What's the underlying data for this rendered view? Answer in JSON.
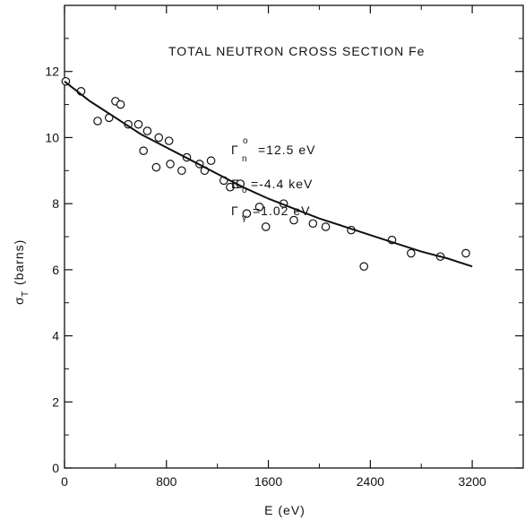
{
  "chart_data": {
    "type": "scatter",
    "title": "TOTAL NEUTRON CROSS SECTION Fe",
    "xlabel": "E (eV)",
    "ylabel": "σT (barns)",
    "xlim": [
      0,
      3600
    ],
    "ylim": [
      0,
      14
    ],
    "x_ticks": [
      0,
      800,
      1600,
      2400,
      3200
    ],
    "y_ticks": [
      0,
      2,
      4,
      6,
      8,
      10,
      12
    ],
    "annotations": {
      "gamma_n_symbol": "Γ",
      "gamma_n_sub": "n",
      "gamma_n_sup": "o",
      "gamma_n_value": "=12.5 eV",
      "e0_symbol": "E",
      "e0_sub": "o",
      "e0_value": "=-4.4 keV",
      "gamma_g_symbol": "Γ",
      "gamma_g_sub": "γ",
      "gamma_g_value": "=1.02 eV"
    },
    "ylabel_symbol": "σ",
    "ylabel_sub": "T",
    "ylabel_unit": "(barns)",
    "series": [
      {
        "kind": "points",
        "x": [
          10,
          130,
          260,
          350,
          400,
          440,
          500,
          580,
          620,
          650,
          720,
          740,
          820,
          830,
          920,
          960,
          1060,
          1100,
          1150,
          1250,
          1300,
          1380,
          1430,
          1530,
          1580,
          1720,
          1800,
          1950,
          2050,
          2250,
          2350,
          2570,
          2720,
          2950,
          3150
        ],
        "y": [
          11.7,
          11.4,
          10.5,
          10.6,
          11.1,
          11.0,
          10.4,
          10.4,
          9.6,
          10.2,
          9.1,
          10.0,
          9.9,
          9.2,
          9.0,
          9.4,
          9.2,
          9.0,
          9.3,
          8.7,
          8.5,
          8.6,
          7.7,
          7.9,
          7.3,
          8.0,
          7.5,
          7.4,
          7.3,
          7.2,
          6.1,
          6.9,
          6.5,
          6.4,
          6.5
        ]
      },
      {
        "kind": "fit",
        "x": [
          0,
          200,
          400,
          600,
          800,
          1000,
          1200,
          1400,
          1600,
          1800,
          2000,
          2200,
          2400,
          2600,
          2800,
          3000,
          3200
        ],
        "y": [
          11.7,
          11.1,
          10.6,
          10.1,
          9.7,
          9.3,
          8.9,
          8.5,
          8.15,
          7.85,
          7.55,
          7.3,
          7.05,
          6.8,
          6.55,
          6.35,
          6.1
        ]
      }
    ]
  }
}
